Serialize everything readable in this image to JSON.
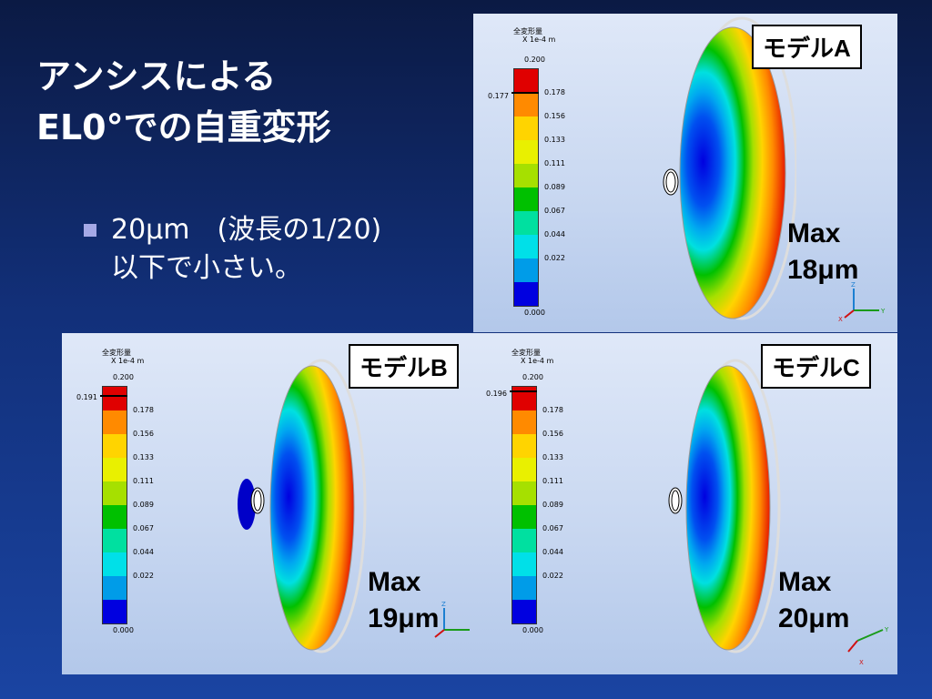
{
  "title": {
    "line1": "アンシスによる",
    "line2": "EL0°での自重変形"
  },
  "bullet": {
    "line1": "20μm　(波長の1/20)",
    "line2": "以下で小さい。"
  },
  "legend_common": {
    "title": "全変形量",
    "unit": "X 1e-4 m",
    "top": "0.200",
    "ticks": [
      "0.178",
      "0.156",
      "0.133",
      "0.111",
      "0.089",
      "0.067",
      "0.044",
      "0.022"
    ],
    "min": "0.000",
    "colors": [
      "#e00000",
      "#ff8a00",
      "#ffd400",
      "#e9f000",
      "#a6e000",
      "#00c000",
      "#00e0a0",
      "#00e0e8",
      "#009ce8",
      "#0000e0"
    ]
  },
  "panels": [
    {
      "id": "a",
      "label": "モデルA",
      "legend_max": "0.177",
      "max_text": [
        "Max",
        "18μm"
      ]
    },
    {
      "id": "b",
      "label": "モデルB",
      "legend_max": "0.191",
      "max_text": [
        "Max",
        "19μm"
      ]
    },
    {
      "id": "c",
      "label": "モデルC",
      "legend_max": "0.196",
      "max_text": [
        "Max",
        "20μm"
      ]
    }
  ],
  "axis_labels": {
    "z": "Z",
    "y": "Y",
    "x": "X"
  }
}
